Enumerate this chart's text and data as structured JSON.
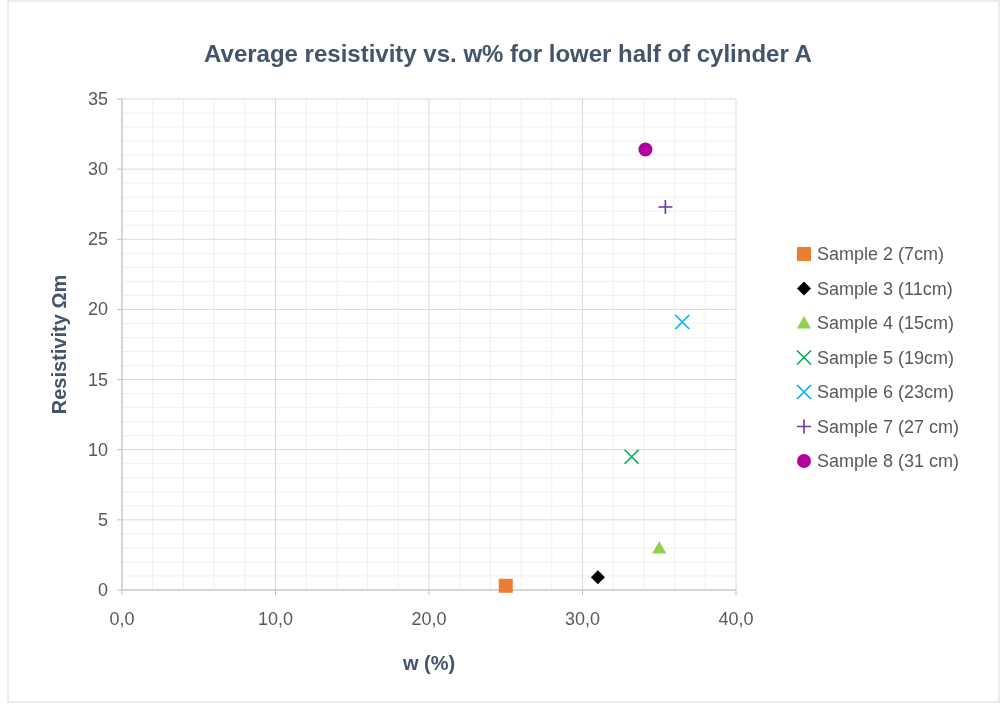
{
  "chart_data": {
    "type": "scatter",
    "title": "Average resistivity vs. w% for lower half of  cylinder A",
    "xlabel": "w (%)",
    "ylabel": "Resistivity Ωm",
    "xlim": [
      0,
      40
    ],
    "xticks": [
      {
        "value": 0,
        "label": "0,0"
      },
      {
        "value": 10,
        "label": "10,0"
      },
      {
        "value": 20,
        "label": "20,0"
      },
      {
        "value": 30,
        "label": "30,0"
      },
      {
        "value": 40,
        "label": "40,0"
      }
    ],
    "ylim": [
      0,
      35
    ],
    "yticks": [
      0,
      5,
      10,
      15,
      20,
      25,
      30,
      35
    ],
    "grid": true,
    "legend": "right",
    "series": [
      {
        "name": "Sample 2 (7cm)",
        "color": "#ed7d31",
        "marker": "square",
        "x": [
          25.0
        ],
        "values": [
          0.3
        ]
      },
      {
        "name": "Sample 3 (11cm)",
        "color": "#000000",
        "marker": "diamond",
        "x": [
          31.0
        ],
        "values": [
          0.9
        ]
      },
      {
        "name": "Sample 4 (15cm)",
        "color": "#92d050",
        "marker": "triangle",
        "x": [
          35.0
        ],
        "values": [
          3.0
        ]
      },
      {
        "name": "Sample 5 (19cm)",
        "color": "#00b050",
        "marker": "cross",
        "x": [
          33.2
        ],
        "values": [
          9.5
        ]
      },
      {
        "name": "Sample 6 (23cm)",
        "color": "#00b0f0",
        "marker": "cross",
        "x": [
          36.5
        ],
        "values": [
          19.1
        ]
      },
      {
        "name": "Sample 7 (27 cm)",
        "color": "#7030a0",
        "marker": "plus",
        "x": [
          35.4
        ],
        "values": [
          27.3
        ]
      },
      {
        "name": "Sample 8 (31 cm)",
        "color": "#b4009e",
        "marker": "circle",
        "x": [
          34.1
        ],
        "values": [
          31.4
        ]
      }
    ]
  }
}
